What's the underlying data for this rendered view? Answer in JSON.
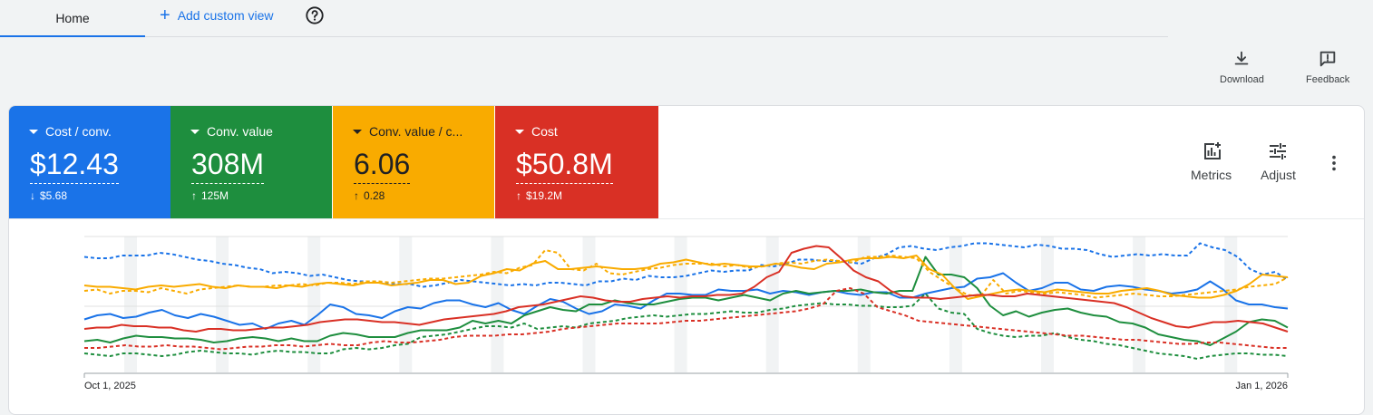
{
  "tabs": {
    "home": "Home",
    "add_custom_view": "Add custom view"
  },
  "toolbar": {
    "download": "Download",
    "feedback": "Feedback"
  },
  "metrics": [
    {
      "label": "Cost / conv.",
      "value": "$12.43",
      "delta": "$5.68",
      "direction": "down",
      "color": "#1a73e8"
    },
    {
      "label": "Conv. value",
      "value": "308M",
      "delta": "125M",
      "direction": "up",
      "color": "#1e8e3e"
    },
    {
      "label": "Conv. value / c...",
      "value": "6.06",
      "delta": "0.28",
      "direction": "up",
      "color": "#f9ab00"
    },
    {
      "label": "Cost",
      "value": "$50.8M",
      "delta": "$19.2M",
      "direction": "up",
      "color": "#d93025"
    }
  ],
  "card_tools": {
    "metrics": "Metrics",
    "adjust": "Adjust"
  },
  "chart_data": {
    "type": "line",
    "x_start_label": "Oct 1, 2025",
    "x_end_label": "Jan 1, 2026",
    "grid": true,
    "series": [
      {
        "color": "#1a73e8",
        "style": "solid",
        "values": [
          0.39,
          0.42,
          0.43,
          0.4,
          0.41,
          0.44,
          0.46,
          0.42,
          0.4,
          0.43,
          0.41,
          0.38,
          0.35,
          0.36,
          0.32,
          0.36,
          0.38,
          0.35,
          0.42,
          0.5,
          0.48,
          0.43,
          0.42,
          0.4,
          0.45,
          0.48,
          0.47,
          0.51,
          0.53,
          0.53,
          0.5,
          0.48,
          0.51,
          0.46,
          0.43,
          0.49,
          0.54,
          0.52,
          0.47,
          0.43,
          0.45,
          0.5,
          0.49,
          0.47,
          0.53,
          0.58,
          0.58,
          0.57,
          0.57,
          0.61,
          0.6,
          0.6,
          0.61,
          0.58,
          0.6,
          0.59,
          0.57,
          0.59,
          0.6,
          0.58,
          0.57,
          0.59,
          0.59,
          0.55,
          0.55,
          0.58,
          0.6,
          0.62,
          0.63,
          0.69,
          0.7,
          0.73,
          0.66,
          0.6,
          0.62,
          0.66,
          0.66,
          0.61,
          0.6,
          0.63,
          0.64,
          0.63,
          0.61,
          0.6,
          0.58,
          0.59,
          0.61,
          0.67,
          0.61,
          0.53,
          0.5,
          0.5,
          0.48,
          0.47
        ]
      },
      {
        "color": "#1a73e8",
        "style": "dashed",
        "values": [
          0.85,
          0.84,
          0.84,
          0.86,
          0.86,
          0.86,
          0.88,
          0.87,
          0.85,
          0.83,
          0.82,
          0.8,
          0.79,
          0.77,
          0.76,
          0.73,
          0.74,
          0.73,
          0.71,
          0.72,
          0.7,
          0.68,
          0.67,
          0.67,
          0.66,
          0.65,
          0.65,
          0.63,
          0.64,
          0.66,
          0.68,
          0.67,
          0.66,
          0.65,
          0.64,
          0.65,
          0.64,
          0.66,
          0.66,
          0.65,
          0.64,
          0.67,
          0.67,
          0.69,
          0.68,
          0.71,
          0.7,
          0.7,
          0.71,
          0.73,
          0.75,
          0.74,
          0.75,
          0.75,
          0.79,
          0.78,
          0.8,
          0.83,
          0.83,
          0.82,
          0.82,
          0.81,
          0.8,
          0.84,
          0.87,
          0.92,
          0.93,
          0.91,
          0.9,
          0.92,
          0.93,
          0.95,
          0.95,
          0.94,
          0.93,
          0.92,
          0.94,
          0.93,
          0.91,
          0.91,
          0.9,
          0.87,
          0.85,
          0.86,
          0.87,
          0.86,
          0.87,
          0.86,
          0.86,
          0.95,
          0.92,
          0.9,
          0.85,
          0.76,
          0.72,
          0.74,
          0.68
        ]
      },
      {
        "color": "#1e8e3e",
        "style": "solid",
        "values": [
          0.23,
          0.24,
          0.22,
          0.25,
          0.27,
          0.26,
          0.26,
          0.25,
          0.25,
          0.24,
          0.22,
          0.23,
          0.25,
          0.26,
          0.25,
          0.23,
          0.25,
          0.23,
          0.23,
          0.27,
          0.29,
          0.28,
          0.26,
          0.26,
          0.26,
          0.29,
          0.31,
          0.31,
          0.31,
          0.33,
          0.38,
          0.36,
          0.38,
          0.36,
          0.42,
          0.45,
          0.48,
          0.46,
          0.45,
          0.5,
          0.5,
          0.53,
          0.51,
          0.5,
          0.5,
          0.52,
          0.54,
          0.55,
          0.55,
          0.53,
          0.55,
          0.57,
          0.55,
          0.53,
          0.58,
          0.6,
          0.58,
          0.59,
          0.6,
          0.6,
          0.61,
          0.59,
          0.58,
          0.6,
          0.6,
          0.85,
          0.72,
          0.72,
          0.7,
          0.62,
          0.49,
          0.42,
          0.45,
          0.41,
          0.44,
          0.46,
          0.47,
          0.44,
          0.42,
          0.41,
          0.37,
          0.36,
          0.33,
          0.28,
          0.26,
          0.24,
          0.23,
          0.2,
          0.25,
          0.3,
          0.37,
          0.39,
          0.38,
          0.33
        ]
      },
      {
        "color": "#1e8e3e",
        "style": "dashed",
        "values": [
          0.14,
          0.13,
          0.12,
          0.14,
          0.14,
          0.13,
          0.12,
          0.13,
          0.15,
          0.16,
          0.15,
          0.14,
          0.14,
          0.13,
          0.15,
          0.16,
          0.15,
          0.15,
          0.14,
          0.14,
          0.17,
          0.18,
          0.17,
          0.18,
          0.2,
          0.21,
          0.26,
          0.27,
          0.28,
          0.3,
          0.32,
          0.34,
          0.34,
          0.33,
          0.36,
          0.32,
          0.33,
          0.34,
          0.33,
          0.36,
          0.37,
          0.38,
          0.4,
          0.41,
          0.42,
          0.41,
          0.42,
          0.43,
          0.43,
          0.44,
          0.45,
          0.44,
          0.44,
          0.46,
          0.47,
          0.49,
          0.5,
          0.51,
          0.5,
          0.5,
          0.49,
          0.49,
          0.48,
          0.48,
          0.49,
          0.58,
          0.47,
          0.44,
          0.43,
          0.32,
          0.29,
          0.27,
          0.26,
          0.27,
          0.27,
          0.29,
          0.26,
          0.24,
          0.23,
          0.21,
          0.2,
          0.18,
          0.16,
          0.14,
          0.13,
          0.12,
          0.1,
          0.12,
          0.13,
          0.14,
          0.14,
          0.13,
          0.13,
          0.12
        ]
      },
      {
        "color": "#f9ab00",
        "style": "solid",
        "values": [
          0.64,
          0.63,
          0.63,
          0.62,
          0.61,
          0.63,
          0.64,
          0.63,
          0.64,
          0.65,
          0.63,
          0.62,
          0.64,
          0.63,
          0.63,
          0.62,
          0.64,
          0.63,
          0.65,
          0.66,
          0.65,
          0.64,
          0.66,
          0.66,
          0.64,
          0.65,
          0.66,
          0.68,
          0.68,
          0.65,
          0.66,
          0.71,
          0.73,
          0.76,
          0.75,
          0.8,
          0.82,
          0.76,
          0.76,
          0.77,
          0.78,
          0.77,
          0.76,
          0.76,
          0.77,
          0.8,
          0.81,
          0.83,
          0.81,
          0.79,
          0.8,
          0.79,
          0.78,
          0.78,
          0.8,
          0.79,
          0.77,
          0.76,
          0.8,
          0.81,
          0.83,
          0.84,
          0.84,
          0.85,
          0.84,
          0.86,
          0.76,
          0.72,
          0.62,
          0.54,
          0.56,
          0.58,
          0.6,
          0.61,
          0.6,
          0.59,
          0.61,
          0.6,
          0.59,
          0.58,
          0.58,
          0.6,
          0.61,
          0.62,
          0.6,
          0.57,
          0.56,
          0.55,
          0.55,
          0.57,
          0.6,
          0.65,
          0.72,
          0.71,
          0.7
        ]
      },
      {
        "color": "#f9ab00",
        "style": "dashed",
        "values": [
          0.6,
          0.61,
          0.58,
          0.6,
          0.6,
          0.59,
          0.62,
          0.6,
          0.58,
          0.61,
          0.62,
          0.63,
          0.64,
          0.63,
          0.63,
          0.64,
          0.64,
          0.65,
          0.64,
          0.66,
          0.66,
          0.65,
          0.67,
          0.67,
          0.66,
          0.67,
          0.68,
          0.69,
          0.69,
          0.7,
          0.71,
          0.72,
          0.74,
          0.73,
          0.77,
          0.79,
          0.9,
          0.88,
          0.76,
          0.75,
          0.8,
          0.73,
          0.72,
          0.74,
          0.76,
          0.77,
          0.79,
          0.8,
          0.8,
          0.8,
          0.78,
          0.79,
          0.77,
          0.78,
          0.8,
          0.81,
          0.8,
          0.82,
          0.83,
          0.82,
          0.81,
          0.85,
          0.85,
          0.86,
          0.85,
          0.84,
          0.74,
          0.68,
          0.62,
          0.57,
          0.56,
          0.68,
          0.58,
          0.6,
          0.59,
          0.58,
          0.59,
          0.58,
          0.57,
          0.55,
          0.56,
          0.57,
          0.58,
          0.57,
          0.56,
          0.56,
          0.57,
          0.58,
          0.59,
          0.6,
          0.61,
          0.63,
          0.64,
          0.65,
          0.7
        ]
      },
      {
        "color": "#d93025",
        "style": "solid",
        "values": [
          0.32,
          0.33,
          0.33,
          0.35,
          0.34,
          0.34,
          0.33,
          0.33,
          0.31,
          0.3,
          0.32,
          0.32,
          0.31,
          0.31,
          0.32,
          0.33,
          0.33,
          0.34,
          0.35,
          0.37,
          0.38,
          0.39,
          0.39,
          0.38,
          0.37,
          0.37,
          0.36,
          0.35,
          0.37,
          0.39,
          0.4,
          0.41,
          0.42,
          0.43,
          0.45,
          0.48,
          0.49,
          0.5,
          0.52,
          0.54,
          0.56,
          0.55,
          0.53,
          0.52,
          0.52,
          0.54,
          0.55,
          0.56,
          0.55,
          0.56,
          0.56,
          0.57,
          0.57,
          0.58,
          0.63,
          0.7,
          0.74,
          0.88,
          0.91,
          0.93,
          0.92,
          0.84,
          0.75,
          0.7,
          0.67,
          0.6,
          0.56,
          0.55,
          0.55,
          0.54,
          0.55,
          0.56,
          0.57,
          0.57,
          0.56,
          0.56,
          0.58,
          0.57,
          0.56,
          0.55,
          0.54,
          0.53,
          0.52,
          0.51,
          0.48,
          0.44,
          0.4,
          0.37,
          0.34,
          0.33,
          0.35,
          0.37,
          0.37,
          0.38,
          0.37,
          0.36,
          0.33,
          0.3
        ]
      },
      {
        "color": "#d93025",
        "style": "dashed",
        "values": [
          0.18,
          0.18,
          0.19,
          0.2,
          0.19,
          0.19,
          0.2,
          0.19,
          0.19,
          0.18,
          0.17,
          0.18,
          0.19,
          0.19,
          0.2,
          0.2,
          0.19,
          0.2,
          0.21,
          0.2,
          0.2,
          0.22,
          0.23,
          0.22,
          0.22,
          0.23,
          0.24,
          0.26,
          0.27,
          0.27,
          0.27,
          0.28,
          0.28,
          0.29,
          0.3,
          0.32,
          0.33,
          0.34,
          0.35,
          0.36,
          0.36,
          0.36,
          0.36,
          0.37,
          0.38,
          0.38,
          0.39,
          0.4,
          0.41,
          0.42,
          0.43,
          0.44,
          0.45,
          0.47,
          0.5,
          0.6,
          0.62,
          0.58,
          0.48,
          0.45,
          0.42,
          0.38,
          0.37,
          0.36,
          0.35,
          0.34,
          0.33,
          0.32,
          0.31,
          0.3,
          0.29,
          0.28,
          0.27,
          0.27,
          0.26,
          0.25,
          0.24,
          0.24,
          0.23,
          0.22,
          0.21,
          0.21,
          0.22,
          0.22,
          0.21,
          0.2,
          0.19,
          0.18,
          0.18
        ]
      }
    ]
  }
}
